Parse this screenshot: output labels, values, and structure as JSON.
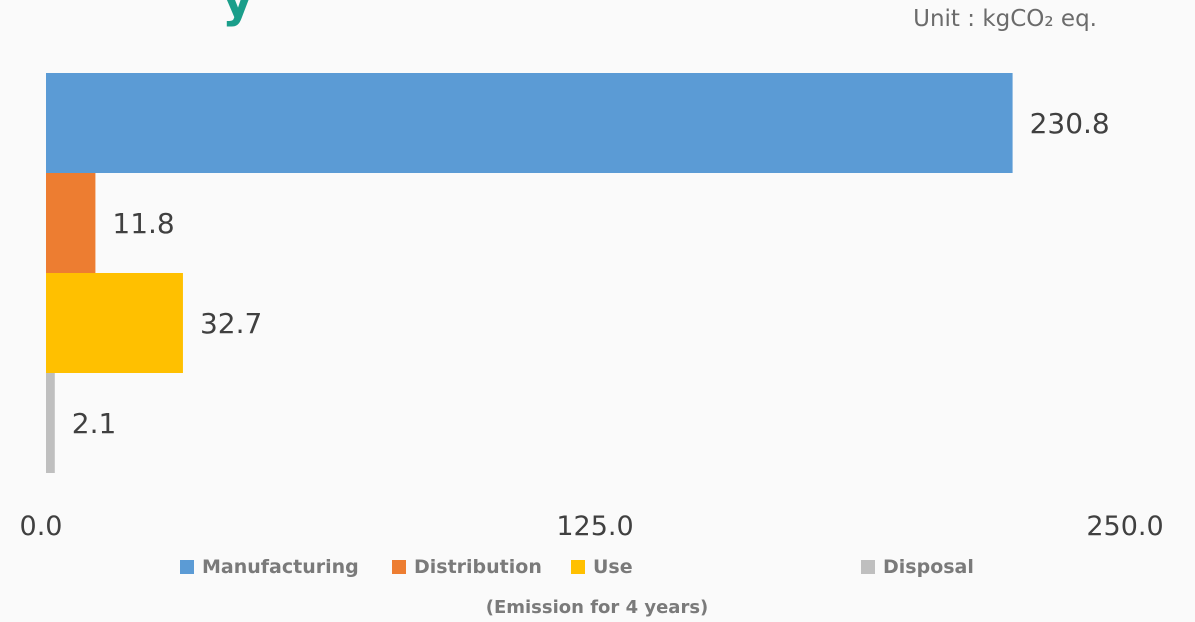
{
  "title_fragment": "y",
  "unit_label": "Unit : kgCO₂ eq.",
  "footnote": "(Emission for 4 years)",
  "chart_data": {
    "type": "bar",
    "orientation": "horizontal",
    "categories": [
      "Manufacturing",
      "Distribution",
      "Use",
      "Disposal"
    ],
    "values": [
      230.8,
      11.8,
      32.7,
      2.1
    ],
    "value_labels": [
      "230.8",
      "11.8",
      "32.7",
      "2.1"
    ],
    "colors": [
      "#5b9bd5",
      "#ed7d31",
      "#ffc000",
      "#bfbfbf"
    ],
    "xlim": [
      0,
      250
    ],
    "x_ticks": [
      "0.0",
      "125.0",
      "250.0"
    ],
    "legend_position": "bottom",
    "grid": false
  }
}
